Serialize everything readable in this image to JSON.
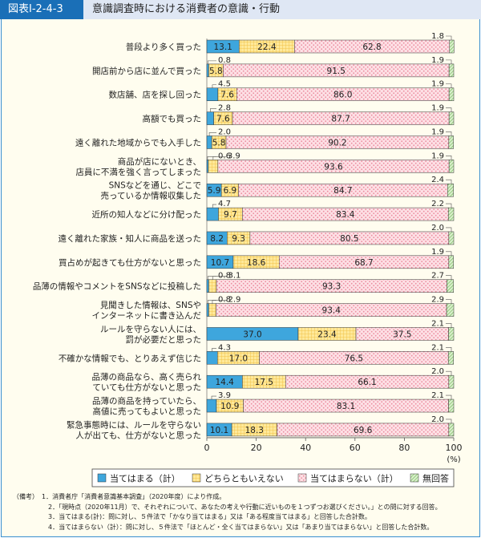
{
  "header": {
    "figure_number": "図表Ⅰ-2-4-3",
    "title": "意識調査時における消費者の意識・行動"
  },
  "chart_data": {
    "type": "bar",
    "orientation": "horizontal-stacked-100",
    "title": "意識調査時における消費者の意識・行動",
    "xlabel": "(%)",
    "xlim": [
      0,
      100
    ],
    "xticks": [
      "0",
      "20",
      "40",
      "60",
      "80",
      "100"
    ],
    "legend_position": "bottom",
    "categories": [
      [
        "普段より多く買った"
      ],
      [
        "開店前から店に並んで買った"
      ],
      [
        "数店舗、店を探し回った"
      ],
      [
        "高額でも買った"
      ],
      [
        "遠く離れた地域からでも入手した"
      ],
      [
        "商品が店にないとき、",
        "店員に不満を強く言ってしまった"
      ],
      [
        "SNSなどを通じ、どこで",
        "売っているか情報収集した"
      ],
      [
        "近所の知人などに分け配った"
      ],
      [
        "遠く離れた家族・知人に商品を送った"
      ],
      [
        "買占めが起きても仕方がないと思った"
      ],
      [
        "品薄の情報やコメントをSNSなどに投稿した"
      ],
      [
        "見聞きした情報は、SNSや",
        "インターネットに書き込んだ"
      ],
      [
        "ルールを守らない人には、",
        "罰が必要だと思った"
      ],
      [
        "不確かな情報でも、とりあえず信じた"
      ],
      [
        "品薄の商品なら、高く売られ",
        "ていても仕方がないと思った"
      ],
      [
        "品薄の商品を持っていたら、",
        "高値に売ってもよいと思った"
      ],
      [
        "緊急事態時には、ルールを守らない",
        "人が出ても、仕方がないと思った"
      ]
    ],
    "series": [
      {
        "name": "当てはまる（計）",
        "color": "#3ea6dd",
        "values": [
          13.1,
          0.8,
          4.5,
          2.8,
          2.0,
          0.6,
          5.9,
          4.7,
          8.2,
          10.7,
          0.8,
          0.8,
          37.0,
          4.3,
          14.4,
          3.9,
          10.1
        ]
      },
      {
        "name": "どちらともいえない",
        "color": "#ffe07a",
        "values": [
          22.4,
          5.8,
          7.6,
          7.6,
          5.8,
          3.9,
          6.9,
          9.7,
          9.3,
          18.6,
          3.1,
          2.9,
          23.4,
          17.0,
          17.5,
          10.9,
          18.3
        ]
      },
      {
        "name": "当てはまらない（計）",
        "color": "#fcd3db",
        "values": [
          62.8,
          91.5,
          86.0,
          87.7,
          90.2,
          93.6,
          84.7,
          83.4,
          80.5,
          68.7,
          93.3,
          93.4,
          37.5,
          76.5,
          66.1,
          83.1,
          69.6
        ]
      },
      {
        "name": "無回答",
        "color": "#9fd08a",
        "values": [
          1.8,
          1.9,
          1.9,
          1.9,
          1.9,
          1.9,
          2.4,
          2.2,
          2.0,
          1.9,
          2.7,
          2.9,
          2.1,
          2.1,
          2.0,
          2.1,
          2.0
        ]
      }
    ]
  },
  "notes": [
    "（備考）　1．消費者庁「消費者意識基本調査」（2020年度）により作成。",
    "2．「現時点（2020年11月）で、それぞれについて、あなたの考えや行動に近いものを１つずつお選びください。」との問に対する回答。",
    "3．当てはまる(計)：問に対し、５件法で「かなり当てはまる」又は「ある程度当てはまる」と回答した合計数。",
    "4．当てはまらない（計）：問に対し、５件法で「ほとんど・全く当てはまらない」又は「あまり当てはまらない」と回答した合計数。"
  ]
}
